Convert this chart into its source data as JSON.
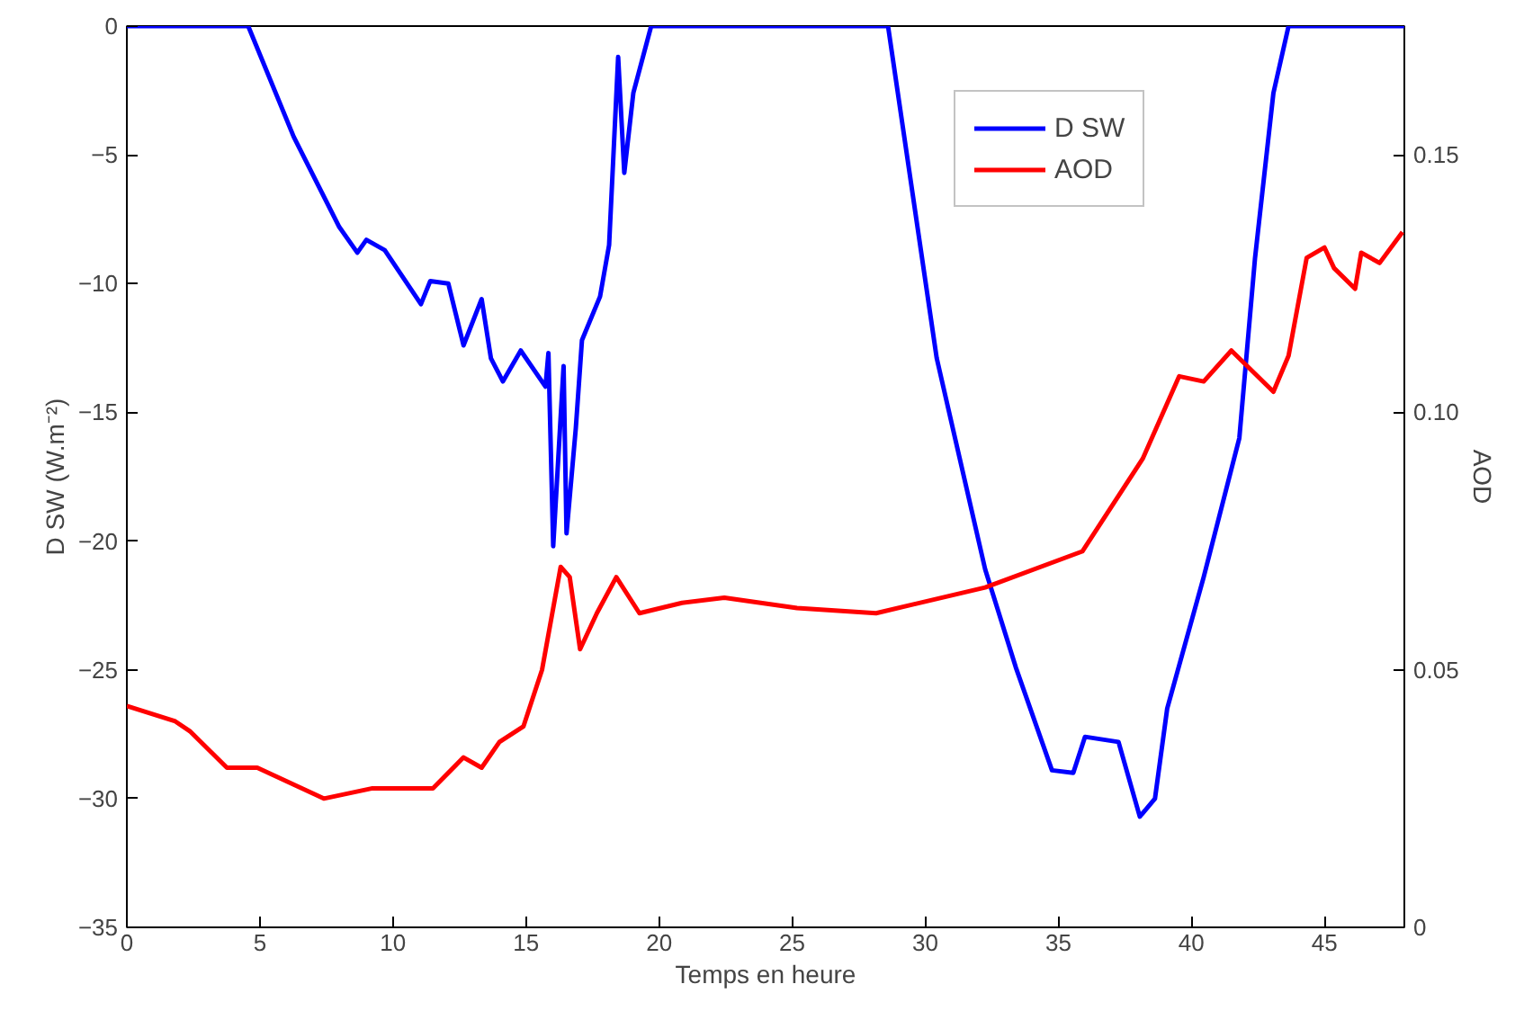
{
  "chart_data": {
    "type": "line",
    "xlabel": "Temps en heure",
    "ylabel": "D SW (W.m⁻²)",
    "y2label": "AOD",
    "xlim": [
      0,
      48
    ],
    "xticks": [
      0,
      5,
      10,
      15,
      20,
      25,
      30,
      35,
      40,
      45
    ],
    "ylim": [
      -35,
      0
    ],
    "yticks": [
      -35,
      -30,
      -25,
      -20,
      -15,
      -10,
      -5,
      0
    ],
    "y2lim": [
      0,
      0.175
    ],
    "y2ticks": [
      0,
      {
        "value": 0.05,
        "label": "0.05"
      },
      {
        "value": 0.1,
        "label": "0.10"
      },
      {
        "value": 0.15,
        "label": "0.15"
      }
    ],
    "grid": false,
    "legend": "top right",
    "marker": "none",
    "line_style": "solid",
    "series": [
      {
        "name": "D SW",
        "color": "#0000ff",
        "x": [
          0,
          4.56,
          6.27,
          7.98,
          8.66,
          9.0,
          9.69,
          11.05,
          11.4,
          12.08,
          12.65,
          13.33,
          13.68,
          14.13,
          14.8,
          15.73,
          15.84,
          16.02,
          16.41,
          16.52,
          16.87,
          17.1,
          17.78,
          18.12,
          18.46,
          18.69,
          19.03,
          19.7,
          28.6,
          30.43,
          32.25,
          33.4,
          34.76,
          35.56,
          36.0,
          37.26,
          38.06,
          38.63,
          39.09,
          40.46,
          41.8,
          42.39,
          43.08,
          43.65,
          48
        ],
        "values": [
          0,
          0,
          -4.3,
          -7.8,
          -8.8,
          -8.3,
          -8.7,
          -10.8,
          -9.9,
          -10.0,
          -12.4,
          -10.6,
          -12.9,
          -13.8,
          -12.6,
          -14.0,
          -12.7,
          -20.2,
          -13.2,
          -19.7,
          -15.6,
          -12.2,
          -10.5,
          -8.5,
          -1.2,
          -5.7,
          -2.6,
          0,
          0,
          -12.9,
          -21.1,
          -24.9,
          -28.9,
          -29.0,
          -27.6,
          -27.8,
          -30.7,
          -30.0,
          -26.5,
          -21.4,
          -16.0,
          -9.0,
          -2.6,
          0,
          0
        ]
      },
      {
        "name": "AOD",
        "color": "#ff0000",
        "axis": "y2",
        "x": [
          0,
          1.82,
          2.39,
          3.76,
          4.9,
          7.4,
          9.23,
          11.5,
          12.65,
          13.33,
          14.0,
          14.9,
          15.6,
          16.3,
          16.64,
          17.03,
          17.66,
          18.39,
          19.26,
          20.86,
          22.45,
          25.18,
          28.15,
          32.25,
          35.9,
          38.17,
          39.54,
          40.46,
          41.5,
          43.08,
          43.65,
          44.33,
          45.0,
          45.36,
          46.15,
          46.38,
          47.07,
          47.93
        ],
        "values": [
          0.043,
          0.04,
          0.038,
          0.031,
          0.031,
          0.025,
          0.027,
          0.027,
          0.033,
          0.031,
          0.036,
          0.039,
          0.05,
          0.07,
          0.068,
          0.054,
          0.061,
          0.068,
          0.061,
          0.063,
          0.064,
          0.062,
          0.061,
          0.066,
          0.073,
          0.091,
          0.107,
          0.106,
          0.112,
          0.104,
          0.111,
          0.13,
          0.132,
          0.128,
          0.124,
          0.131,
          0.129,
          0.135
        ]
      }
    ]
  }
}
